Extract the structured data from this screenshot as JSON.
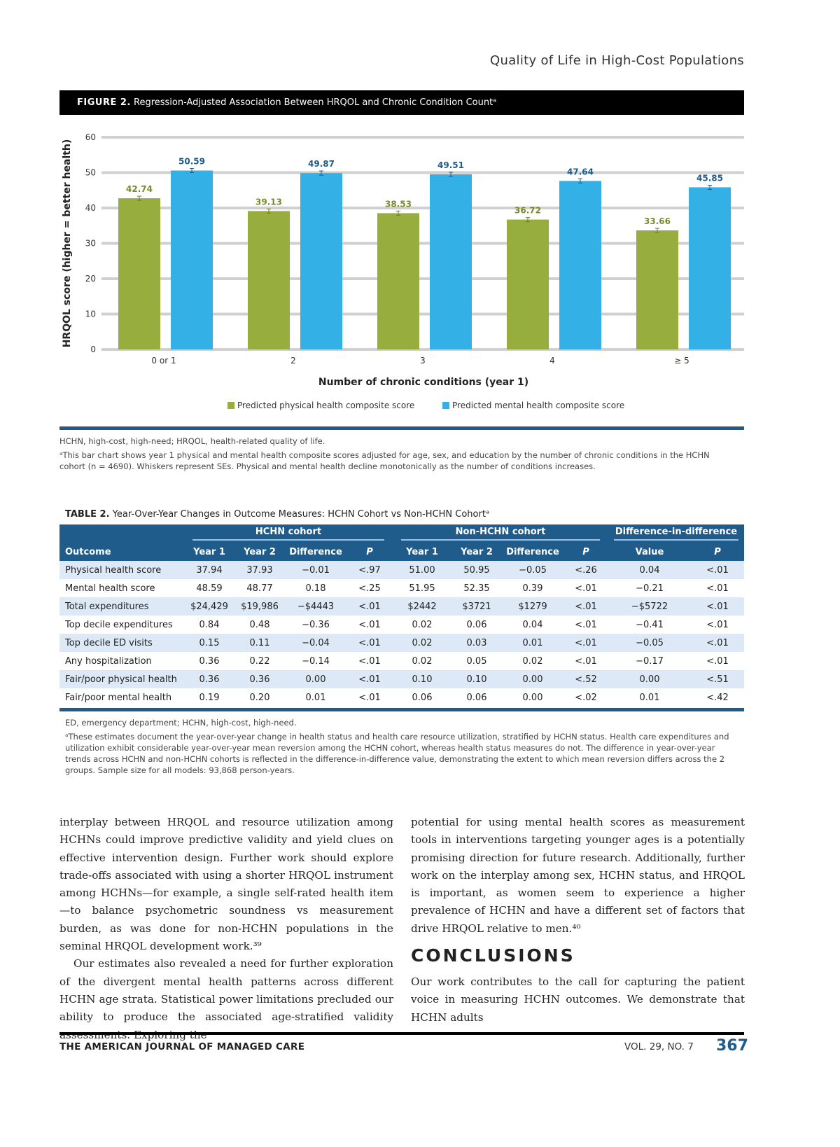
{
  "running_head": "Quality of Life in High-Cost Populations",
  "figure": {
    "label": "FIGURE 2.",
    "title": "Regression-Adjusted Association Between HRQOL and Chronic Condition Countᵃ",
    "abbrev": "HCHN, high-cost, high-need; HRQOL, health-related quality of life.",
    "footnote": "ᵃThis bar chart shows year 1 physical and mental health composite scores adjusted for age, sex, and education by the number of chronic conditions in the HCHN cohort (n = 4690). Whiskers represent SEs. Physical and mental health decline monotonically as the number of conditions increases."
  },
  "chart_data": {
    "type": "bar",
    "categories": [
      "0 or 1",
      "2",
      "3",
      "4",
      "≥ 5"
    ],
    "series": [
      {
        "name": "Predicted physical health composite score",
        "values": [
          42.74,
          39.13,
          38.53,
          36.72,
          33.66
        ],
        "color": "#97ad3e",
        "label_color": "#7a8b2e"
      },
      {
        "name": "Predicted mental health composite score",
        "values": [
          50.59,
          49.87,
          49.51,
          47.64,
          45.85
        ],
        "color": "#33b0e5",
        "label_color": "#1f5c8b"
      }
    ],
    "xlabel": "Number of chronic conditions (year 1)",
    "ylabel": "HRQOL score (higher = better health)",
    "ylim": [
      0,
      60
    ],
    "yticks": [
      0,
      10,
      20,
      30,
      40,
      50,
      60
    ],
    "grid": true,
    "legend": "bottom",
    "error_bars": "SE"
  },
  "table": {
    "label": "TABLE 2.",
    "title": "Year-Over-Year Changes in Outcome Measures: HCHN Cohort vs Non-HCHN Cohortᵃ",
    "groups": [
      "HCHN cohort",
      "Non-HCHN cohort",
      "Difference-in-difference"
    ],
    "columns": [
      "Outcome",
      "Year 1",
      "Year 2",
      "Difference",
      "P",
      "Year 1",
      "Year 2",
      "Difference",
      "P",
      "Value",
      "P"
    ],
    "rows": [
      [
        "Physical health score",
        "37.94",
        "37.93",
        "−0.01",
        "<.97",
        "51.00",
        "50.95",
        "−0.05",
        "<.26",
        "0.04",
        "<.01"
      ],
      [
        "Mental health score",
        "48.59",
        "48.77",
        "0.18",
        "<.25",
        "51.95",
        "52.35",
        "0.39",
        "<.01",
        "−0.21",
        "<.01"
      ],
      [
        "Total expenditures",
        "$24,429",
        "$19,986",
        "−$4443",
        "<.01",
        "$2442",
        "$3721",
        "$1279",
        "<.01",
        "−$5722",
        "<.01"
      ],
      [
        "Top decile expenditures",
        "0.84",
        "0.48",
        "−0.36",
        "<.01",
        "0.02",
        "0.06",
        "0.04",
        "<.01",
        "−0.41",
        "<.01"
      ],
      [
        "Top decile ED visits",
        "0.15",
        "0.11",
        "−0.04",
        "<.01",
        "0.02",
        "0.03",
        "0.01",
        "<.01",
        "−0.05",
        "<.01"
      ],
      [
        "Any hospitalization",
        "0.36",
        "0.22",
        "−0.14",
        "<.01",
        "0.02",
        "0.05",
        "0.02",
        "<.01",
        "−0.17",
        "<.01"
      ],
      [
        "Fair/poor physical health",
        "0.36",
        "0.36",
        "0.00",
        "<.01",
        "0.10",
        "0.10",
        "0.00",
        "<.52",
        "0.00",
        "<.51"
      ],
      [
        "Fair/poor mental health",
        "0.19",
        "0.20",
        "0.01",
        "<.01",
        "0.06",
        "0.06",
        "0.00",
        "<.02",
        "0.01",
        "<.42"
      ]
    ],
    "abbrev": "ED, emergency department; HCHN, high-cost, high-need.",
    "footnote": "ᵃThese estimates document the year-over-year change in health status and health care resource utilization, stratified by HCHN status. Health care expenditures and utilization exhibit considerable year-over-year mean reversion among the HCHN cohort, whereas health status measures do not. The difference in year-over-year trends across HCHN and non-HCHN cohorts is reflected in the difference-in-difference value, demonstrating the extent to which mean reversion differs across the 2 groups. Sample size for all models: 93,868 person-years."
  },
  "body": {
    "left_p1": "interplay between HRQOL and resource utilization among HCHNs could improve predictive validity and yield clues on effective intervention design. Further work should explore trade-offs associated with using a shorter HRQOL instrument among HCHNs—for example, a single self-rated health item—to balance psychometric soundness vs measurement burden, as was done for non-HCHN populations in the seminal HRQOL development work.³⁹",
    "left_p2": "Our estimates also revealed a need for further exploration of the divergent mental health patterns across different HCHN age strata. Statistical power limitations precluded our ability to produce the associated age-stratified validity assessments. Exploring the",
    "right_p1": "potential for using mental health scores as measurement tools in interventions targeting younger ages is a potentially promising direction for future research. Additionally, further work on the interplay among sex, HCHN status, and HRQOL is important, as women seem to experience a higher prevalence of HCHN and have a different set of factors that drive HRQOL relative to men.⁴⁰",
    "conclusions_heading": "CONCLUSIONS",
    "right_p2": "Our work contributes to the call for capturing the patient voice in measuring HCHN outcomes. We demonstrate that HCHN adults"
  },
  "footer": {
    "journal": "THE AMERICAN JOURNAL OF MANAGED CARE",
    "volume": "VOL. 29, NO. 7",
    "page": "367"
  }
}
